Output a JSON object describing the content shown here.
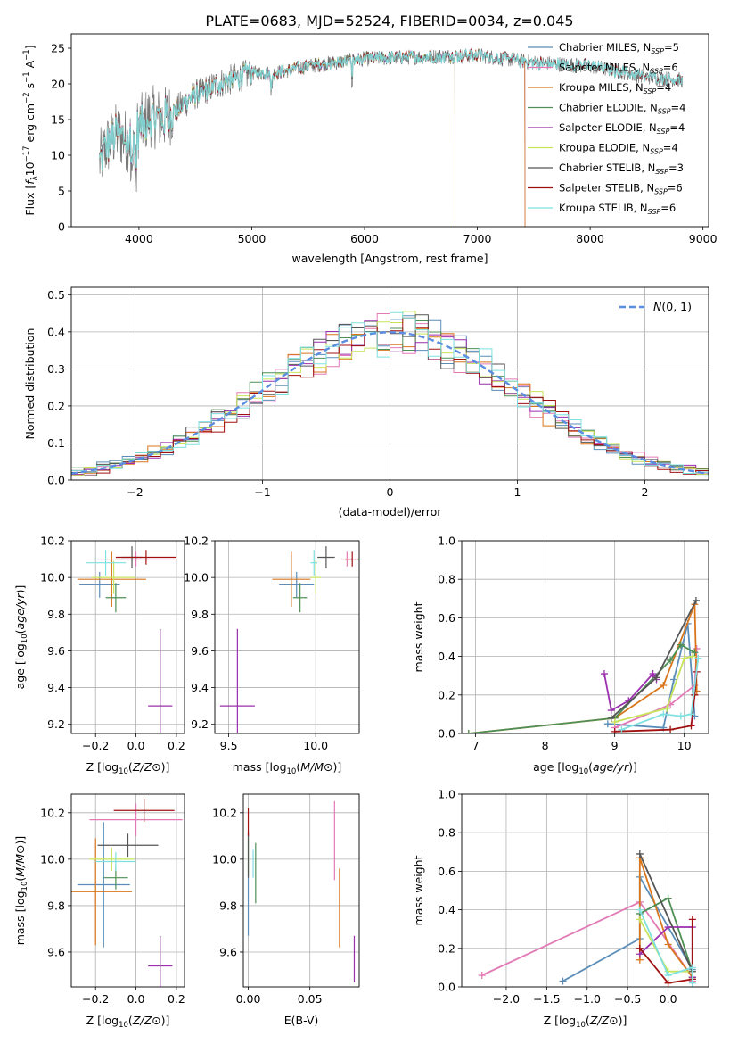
{
  "figure_title": "PLATE=0683, MJD=52524, FIBERID=0034, z=0.045",
  "colors": {
    "models": [
      "#5b8db8",
      "#e37ab6",
      "#d9761c",
      "#4e8f55",
      "#9b2fae",
      "#c7e35a",
      "#555555",
      "#a01010",
      "#7fe0e0"
    ],
    "normal_curve": "#5b8de0",
    "grid": "#b0b0b0"
  },
  "chart_data": [
    {
      "id": "spectrum",
      "type": "line",
      "xlabel": "wavelength [Angstrom, rest frame]",
      "ylabel": "Flux [f_λ 10^-17 erg cm^-2 s^-1 A^-1]",
      "xlim": [
        3400,
        9050
      ],
      "ylim": [
        0,
        27
      ],
      "xticks": [
        4000,
        5000,
        6000,
        7000,
        8000,
        9000
      ],
      "yticks": [
        0,
        5,
        10,
        15,
        20,
        25
      ],
      "grid": false,
      "legend_position": "top-right",
      "wavelength_range": [
        3650,
        8820
      ],
      "continuum": [
        [
          3650,
          9
        ],
        [
          3700,
          11
        ],
        [
          3800,
          13
        ],
        [
          3900,
          12
        ],
        [
          4000,
          14
        ],
        [
          4100,
          15.5
        ],
        [
          4200,
          15
        ],
        [
          4300,
          16
        ],
        [
          4500,
          18.5
        ],
        [
          4700,
          20
        ],
        [
          5000,
          21.5
        ],
        [
          5200,
          21.5
        ],
        [
          5500,
          22.5
        ],
        [
          6000,
          23.5
        ],
        [
          6500,
          23.8
        ],
        [
          7000,
          24
        ],
        [
          7500,
          23
        ],
        [
          8000,
          22.5
        ],
        [
          8500,
          21
        ],
        [
          8820,
          20.5
        ]
      ],
      "series": [
        {
          "label": "Chabrier MILES, N_SSP=5",
          "end": 7420
        },
        {
          "label": "Salpeter MILES, N_SSP=6",
          "end": 7420
        },
        {
          "label": "Kroupa MILES, N_SSP=4",
          "end": 7420
        },
        {
          "label": "Chabrier ELODIE, N_SSP=4",
          "end": 6800
        },
        {
          "label": "Salpeter ELODIE, N_SSP=4",
          "end": 6800
        },
        {
          "label": "Kroupa ELODIE, N_SSP=4",
          "end": 6800
        },
        {
          "label": "Chabrier STELIB, N_SSP=3",
          "end": 8820
        },
        {
          "label": "Salpeter STELIB, N_SSP=6",
          "end": 8820
        },
        {
          "label": "Kroupa STELIB, N_SSP=6",
          "end": 8820
        }
      ],
      "legend_entries": [
        {
          "pre": "Chabrier MILES, N",
          "sub": "SSP",
          "post": "=5"
        },
        {
          "pre": "Salpeter MILES, N",
          "sub": "SSP",
          "post": "=6"
        },
        {
          "pre": "Kroupa MILES, N",
          "sub": "SSP",
          "post": "=4"
        },
        {
          "pre": "Chabrier ELODIE, N",
          "sub": "SSP",
          "post": "=4"
        },
        {
          "pre": "Salpeter ELODIE, N",
          "sub": "SSP",
          "post": "=4"
        },
        {
          "pre": "Kroupa ELODIE, N",
          "sub": "SSP",
          "post": "=4"
        },
        {
          "pre": "Chabrier STELIB, N",
          "sub": "SSP",
          "post": "=3"
        },
        {
          "pre": "Salpeter STELIB, N",
          "sub": "SSP",
          "post": "=6"
        },
        {
          "pre": "Kroupa STELIB, N",
          "sub": "SSP",
          "post": "=6"
        }
      ]
    },
    {
      "id": "residuals",
      "type": "histogram",
      "xlabel": "(data-model)/error",
      "ylabel": "Normed distribution",
      "xlim": [
        -2.5,
        2.5
      ],
      "ylim": [
        0,
        0.52
      ],
      "xticks": [
        -2,
        -1,
        0,
        1,
        2
      ],
      "yticks": [
        0.0,
        0.1,
        0.2,
        0.3,
        0.4,
        0.5
      ],
      "grid": true,
      "bin_width": 0.1,
      "legend": "N(0,1)",
      "legend_position": "top-right"
    },
    {
      "id": "age_vs_Z",
      "type": "errorbar",
      "xlabel": "Z [log10(Z/Z⊙)]",
      "ylabel": "age [log10(age/yr)]",
      "xlim": [
        -0.32,
        0.24
      ],
      "ylim": [
        9.15,
        10.2
      ],
      "xticks": [
        -0.2,
        0.0,
        0.2
      ],
      "yticks": [
        9.2,
        9.4,
        9.6,
        9.8,
        10.0,
        10.2
      ],
      "grid": true,
      "points": [
        {
          "x": -0.18,
          "y": 9.96,
          "xerr": 0.1,
          "yerr": 0.07
        },
        {
          "x": 0.0,
          "y": 10.1,
          "xerr": 0.19,
          "yerr": 0.04
        },
        {
          "x": -0.12,
          "y": 9.99,
          "xerr": 0.17,
          "yerr": 0.15
        },
        {
          "x": -0.1,
          "y": 9.89,
          "xerr": 0.05,
          "yerr": 0.08
        },
        {
          "x": 0.12,
          "y": 9.3,
          "xerr": 0.06,
          "yerr": 0.42
        },
        {
          "x": -0.11,
          "y": 10.0,
          "xerr": 0.11,
          "yerr": 0.09
        },
        {
          "x": -0.02,
          "y": 10.11,
          "xerr": 0.05,
          "yerr": 0.06
        },
        {
          "x": 0.05,
          "y": 10.11,
          "xerr": 0.15,
          "yerr": 0.04
        },
        {
          "x": -0.15,
          "y": 10.08,
          "xerr": 0.1,
          "yerr": 0.07
        }
      ]
    },
    {
      "id": "age_vs_mass",
      "type": "errorbar",
      "xlabel": "mass [log10(M/M⊙)]",
      "ylabel": "",
      "xlim": [
        9.42,
        10.25
      ],
      "ylim": [
        9.15,
        10.2
      ],
      "xticks": [
        9.5,
        10.0
      ],
      "yticks": [
        9.2,
        9.4,
        9.6,
        9.8,
        10.0,
        10.2
      ],
      "grid": true,
      "points": [
        {
          "x": 9.89,
          "y": 9.96,
          "xerr": 0.1,
          "yerr": 0.07
        },
        {
          "x": 10.18,
          "y": 10.1,
          "xerr": 0.03,
          "yerr": 0.04
        },
        {
          "x": 9.86,
          "y": 9.99,
          "xerr": 0.11,
          "yerr": 0.15
        },
        {
          "x": 9.91,
          "y": 9.89,
          "xerr": 0.04,
          "yerr": 0.08
        },
        {
          "x": 9.55,
          "y": 9.3,
          "xerr": 0.1,
          "yerr": 0.42
        },
        {
          "x": 10.0,
          "y": 10.0,
          "xerr": 0.03,
          "yerr": 0.09
        },
        {
          "x": 10.06,
          "y": 10.11,
          "xerr": 0.05,
          "yerr": 0.06
        },
        {
          "x": 10.21,
          "y": 10.1,
          "xerr": 0.04,
          "yerr": 0.04
        },
        {
          "x": 9.99,
          "y": 10.08,
          "xerr": 0.02,
          "yerr": 0.07
        }
      ]
    },
    {
      "id": "massweight_vs_age",
      "type": "line",
      "xlabel": "age [log10(age/yr)]",
      "ylabel": "mass weight",
      "xlim": [
        6.8,
        10.35
      ],
      "ylim": [
        0,
        1.0
      ],
      "xticks": [
        7,
        8,
        9,
        10
      ],
      "yticks": [
        0.0,
        0.2,
        0.4,
        0.6,
        0.8,
        1.0
      ],
      "grid": true,
      "series": [
        {
          "points": [
            [
              8.9,
              0.05
            ],
            [
              9.7,
              0.03
            ],
            [
              9.85,
              0.28
            ],
            [
              10.05,
              0.57
            ],
            [
              10.15,
              0.09
            ]
          ]
        },
        {
          "points": [
            [
              9.0,
              0.03
            ],
            [
              9.8,
              0.15
            ],
            [
              10.15,
              0.25
            ],
            [
              10.18,
              0.44
            ]
          ]
        },
        {
          "points": [
            [
              6.9,
              0.0
            ],
            [
              9.0,
              0.08
            ],
            [
              9.7,
              0.25
            ],
            [
              10.15,
              0.67
            ],
            [
              10.18,
              0.22
            ]
          ]
        },
        {
          "points": [
            [
              6.9,
              0.0
            ],
            [
              9.0,
              0.08
            ],
            [
              9.8,
              0.38
            ],
            [
              9.95,
              0.46
            ],
            [
              10.15,
              0.42
            ]
          ]
        },
        {
          "points": [
            [
              8.85,
              0.31
            ],
            [
              8.95,
              0.12
            ],
            [
              9.2,
              0.17
            ],
            [
              9.55,
              0.31
            ],
            [
              9.6,
              0.28
            ]
          ]
        },
        {
          "points": [
            [
              9.0,
              0.06
            ],
            [
              9.75,
              0.13
            ],
            [
              10.0,
              0.39
            ],
            [
              10.12,
              0.4
            ]
          ]
        },
        {
          "points": [
            [
              8.95,
              0.08
            ],
            [
              9.6,
              0.29
            ],
            [
              10.17,
              0.69
            ]
          ]
        },
        {
          "points": [
            [
              9.0,
              0.01
            ],
            [
              9.8,
              0.02
            ],
            [
              10.1,
              0.04
            ],
            [
              10.15,
              0.2
            ],
            [
              10.18,
              0.32
            ]
          ]
        },
        {
          "points": [
            [
              9.1,
              0.02
            ],
            [
              9.7,
              0.1
            ],
            [
              9.95,
              0.09
            ],
            [
              10.1,
              0.1
            ],
            [
              10.2,
              0.39
            ]
          ]
        }
      ]
    },
    {
      "id": "mass_vs_Z",
      "type": "errorbar",
      "xlabel": "Z [log10(Z/Z⊙)]",
      "ylabel": "mass [log10(M/M⊙)]",
      "xlim": [
        -0.32,
        0.24
      ],
      "ylim": [
        9.45,
        10.28
      ],
      "xticks": [
        -0.2,
        0.0,
        0.2
      ],
      "yticks": [
        9.6,
        9.8,
        10.0,
        10.2
      ],
      "grid": true,
      "points": [
        {
          "x": -0.16,
          "y": 9.89,
          "xerr": 0.13,
          "yerr": 0.27
        },
        {
          "x": 0.0,
          "y": 10.17,
          "xerr": 0.23,
          "yerr": 0.07
        },
        {
          "x": -0.2,
          "y": 9.86,
          "xerr": 0.18,
          "yerr": 0.23
        },
        {
          "x": -0.1,
          "y": 9.92,
          "xerr": 0.06,
          "yerr": 0.05
        },
        {
          "x": 0.12,
          "y": 9.54,
          "xerr": 0.06,
          "yerr": 0.13
        },
        {
          "x": -0.12,
          "y": 10.0,
          "xerr": 0.11,
          "yerr": 0.05
        },
        {
          "x": -0.04,
          "y": 10.06,
          "xerr": 0.15,
          "yerr": 0.05
        },
        {
          "x": 0.04,
          "y": 10.21,
          "xerr": 0.15,
          "yerr": 0.05
        },
        {
          "x": -0.1,
          "y": 9.99,
          "xerr": 0.1,
          "yerr": 0.04
        }
      ]
    },
    {
      "id": "mass_vs_EBV",
      "type": "errorbar",
      "xlabel": "E(B-V)",
      "ylabel": "",
      "xlim": [
        -0.004,
        0.09
      ],
      "ylim": [
        9.45,
        10.28
      ],
      "xticks": [
        0.0,
        0.05
      ],
      "yticks": [
        9.6,
        9.8,
        10.0,
        10.2
      ],
      "grid": true,
      "points": [
        {
          "x": 0.0,
          "y": 9.89,
          "xerr": 0,
          "yerr": 0.22
        },
        {
          "x": 0.07,
          "y": 10.08,
          "xerr": 0,
          "yerr": 0.17
        },
        {
          "x": 0.074,
          "y": 9.79,
          "xerr": 0,
          "yerr": 0.17
        },
        {
          "x": 0.006,
          "y": 9.94,
          "xerr": 0,
          "yerr": 0.13
        },
        {
          "x": 0.086,
          "y": 9.57,
          "xerr": 0,
          "yerr": 0.1
        },
        {
          "x": 0.0,
          "y": 10.01,
          "xerr": 0,
          "yerr": 0.08
        },
        {
          "x": 0.0,
          "y": 10.02,
          "xerr": 0,
          "yerr": 0.1
        },
        {
          "x": 0.0,
          "y": 10.16,
          "xerr": 0,
          "yerr": 0.06
        },
        {
          "x": 0.004,
          "y": 9.98,
          "xerr": 0,
          "yerr": 0.06
        }
      ]
    },
    {
      "id": "massweight_vs_Z",
      "type": "line",
      "xlabel": "Z [log10(Z/Z⊙)]",
      "ylabel": "mass weight",
      "xlim": [
        -2.55,
        0.5
      ],
      "ylim": [
        0,
        1.0
      ],
      "xticks": [
        -2.0,
        -1.5,
        -1.0,
        -0.5,
        0.0
      ],
      "yticks": [
        0.0,
        0.2,
        0.4,
        0.6,
        0.8,
        1.0
      ],
      "grid": true,
      "series": [
        {
          "points": [
            [
              -1.3,
              0.03
            ],
            [
              -0.35,
              0.25
            ],
            [
              -0.35,
              0.57
            ],
            [
              0.3,
              0.09
            ],
            [
              0.3,
              0.05
            ]
          ]
        },
        {
          "points": [
            [
              -2.3,
              0.06
            ],
            [
              -0.35,
              0.44
            ],
            [
              0.3,
              0.05
            ],
            [
              0.3,
              0.03
            ]
          ]
        },
        {
          "points": [
            [
              -0.35,
              0.14
            ],
            [
              -0.35,
              0.67
            ],
            [
              0.0,
              0.22
            ],
            [
              0.3,
              0.05
            ]
          ]
        },
        {
          "points": [
            [
              -0.35,
              0.38
            ],
            [
              0.0,
              0.46
            ],
            [
              0.3,
              0.08
            ],
            [
              0.3,
              0.05
            ]
          ]
        },
        {
          "points": [
            [
              -0.35,
              0.17
            ],
            [
              0.0,
              0.31
            ],
            [
              0.3,
              0.31
            ],
            [
              0.3,
              0.05
            ]
          ]
        },
        {
          "points": [
            [
              -0.35,
              0.35
            ],
            [
              0.0,
              0.08
            ],
            [
              0.3,
              0.08
            ]
          ]
        },
        {
          "points": [
            [
              -0.35,
              0.69
            ],
            [
              0.3,
              0.08
            ],
            [
              0.3,
              0.04
            ]
          ]
        },
        {
          "points": [
            [
              -0.35,
              0.2
            ],
            [
              0.0,
              0.02
            ],
            [
              0.3,
              0.04
            ],
            [
              0.3,
              0.35
            ]
          ]
        },
        {
          "points": [
            [
              -0.35,
              0.4
            ],
            [
              0.0,
              0.06
            ],
            [
              0.3,
              0.1
            ],
            [
              0.3,
              0.02
            ]
          ]
        }
      ]
    }
  ]
}
